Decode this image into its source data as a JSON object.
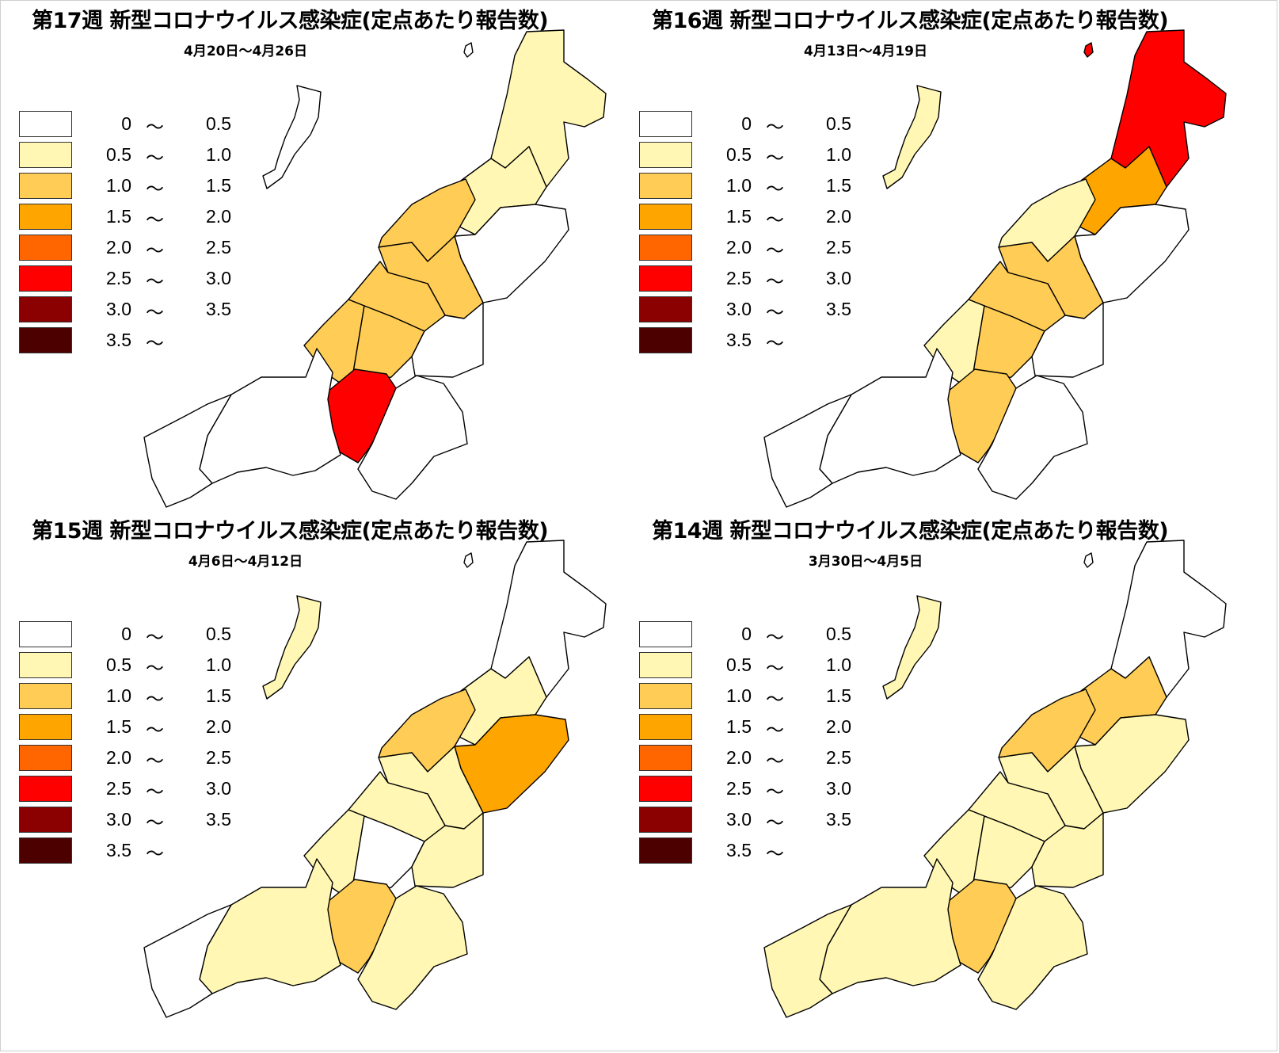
{
  "legend": [
    {
      "lo": "0",
      "sep": "〜",
      "hi": "0.5",
      "color": "#ffffff"
    },
    {
      "lo": "0.5",
      "sep": "〜",
      "hi": "1.0",
      "color": "#fff7b3"
    },
    {
      "lo": "1.0",
      "sep": "〜",
      "hi": "1.5",
      "color": "#ffcc55"
    },
    {
      "lo": "1.5",
      "sep": "〜",
      "hi": "2.0",
      "color": "#ffa500"
    },
    {
      "lo": "2.0",
      "sep": "〜",
      "hi": "2.5",
      "color": "#ff6600"
    },
    {
      "lo": "2.5",
      "sep": "〜",
      "hi": "3.0",
      "color": "#ff0000"
    },
    {
      "lo": "3.0",
      "sep": "〜",
      "hi": "3.5",
      "color": "#8b0000"
    },
    {
      "lo": "3.5",
      "sep": "〜",
      "hi": "",
      "color": "#4d0000"
    }
  ],
  "panels": [
    {
      "title": "第17週 新型コロナウイルス感染症(定点あたり報告数)",
      "subtitle": "4月20日〜4月26日",
      "regions": {
        "sado": 0,
        "awashima": 0,
        "murakami": 1,
        "shibata": 1,
        "niigata": 2,
        "sanjo": 2,
        "tsubame": 2,
        "agano": 0,
        "kashiwazaki": 2,
        "nagaoka": 2,
        "uonuma": 0,
        "minamiuonuma": 5,
        "tokamachi": 0,
        "joetsu": 0,
        "itoigawa": 0
      }
    },
    {
      "title": "第16週 新型コロナウイルス感染症(定点あたり報告数)",
      "subtitle": "4月13日〜4月19日",
      "regions": {
        "sado": 1,
        "awashima": 5,
        "murakami": 5,
        "shibata": 3,
        "niigata": 1,
        "sanjo": 2,
        "tsubame": 2,
        "agano": 0,
        "kashiwazaki": 1,
        "nagaoka": 2,
        "uonuma": 0,
        "minamiuonuma": 2,
        "tokamachi": 0,
        "joetsu": 0,
        "itoigawa": 0
      }
    },
    {
      "title": "第15週 新型コロナウイルス感染症(定点あたり報告数)",
      "subtitle": "4月6日〜4月12日",
      "regions": {
        "sado": 1,
        "awashima": 0,
        "murakami": 0,
        "shibata": 1,
        "niigata": 2,
        "sanjo": 1,
        "tsubame": 1,
        "agano": 3,
        "kashiwazaki": 1,
        "nagaoka": 0,
        "uonuma": 1,
        "minamiuonuma": 2,
        "tokamachi": 1,
        "joetsu": 1,
        "itoigawa": 0
      }
    },
    {
      "title": "第14週 新型コロナウイルス感染症(定点あたり報告数)",
      "subtitle": "3月30日〜4月5日",
      "regions": {
        "sado": 1,
        "awashima": 0,
        "murakami": 0,
        "shibata": 2,
        "niigata": 2,
        "sanjo": 1,
        "tsubame": 1,
        "agano": 1,
        "kashiwazaki": 1,
        "nagaoka": 1,
        "uonuma": 1,
        "minamiuonuma": 2,
        "tokamachi": 1,
        "joetsu": 1,
        "itoigawa": 1
      }
    }
  ]
}
